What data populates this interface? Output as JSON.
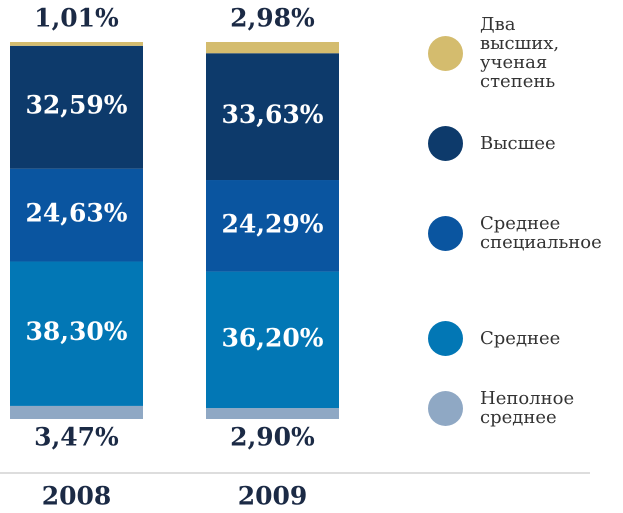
{
  "chart_data": {
    "type": "stacked_bar",
    "categories": [
      "2008",
      "2009"
    ],
    "ylim": [
      0,
      100
    ],
    "series": [
      {
        "name": "Неполное среднее",
        "color": "#8fa8c4",
        "values": [
          3.47,
          2.9
        ],
        "value_labels": [
          "3,47%",
          "2,90%"
        ]
      },
      {
        "name": "Среднее",
        "color": "#0277b5",
        "values": [
          38.3,
          36.2
        ],
        "value_labels": [
          "38,30%",
          "36,20%"
        ]
      },
      {
        "name": "Среднее специальное",
        "color": "#0a55a0",
        "values": [
          24.63,
          24.29
        ],
        "value_labels": [
          "24,63%",
          "24,29%"
        ]
      },
      {
        "name": "Высшее",
        "color": "#0d3a6b",
        "values": [
          32.59,
          33.63
        ],
        "value_labels": [
          "32,59%",
          "33,63%"
        ]
      },
      {
        "name": "Два высших, ученая степень",
        "color": "#d4bc6e",
        "values": [
          1.01,
          2.98
        ],
        "value_labels": [
          "1,01%",
          "2,98%"
        ]
      }
    ]
  }
}
